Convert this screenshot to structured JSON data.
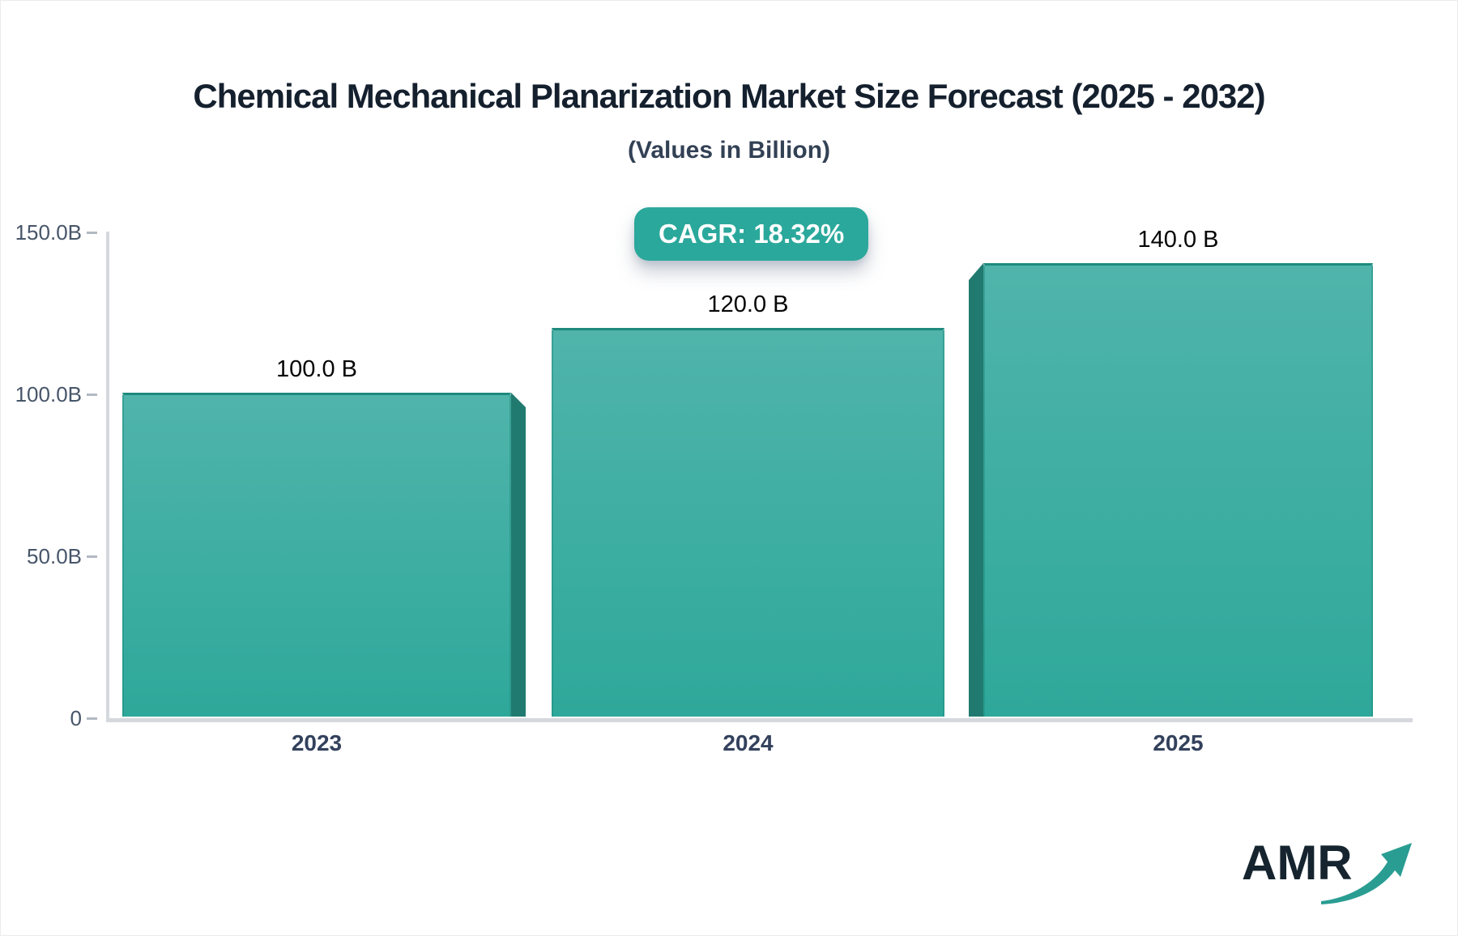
{
  "title": "Chemical Mechanical Planarization Market Size Forecast (2025 - 2032)",
  "subtitle": "(Values in Billion)",
  "badge": {
    "label": "CAGR: 18.32%"
  },
  "watermark": {
    "text": "AMR"
  },
  "colors": {
    "title_text": "#15202e",
    "subtitle_text": "#334155",
    "badge_bg": "#2aa89b",
    "badge_text": "#ffffff",
    "axis_line": "#d5d8dd",
    "tick_dash": "#b3b9c2",
    "y_label_text": "#475569",
    "x_label_text": "#33415c",
    "value_label_text": "#060606",
    "bar_top": "#50b4ab",
    "bar_bottom": "#2ea89a",
    "bar_edge": "#1e8a7e",
    "bar_side": "#217a6f",
    "logo_text": "#15242e",
    "logo_arrow": "#2a9d92"
  },
  "chart_data": {
    "type": "bar",
    "title": "Chemical Mechanical Planarization Market Size Forecast (2025 - 2032)",
    "subtitle": "(Values in Billion)",
    "cagr_percent": 18.32,
    "categories": [
      "2023",
      "2024",
      "2025"
    ],
    "values": [
      100.0,
      120.0,
      140.0
    ],
    "bar_labels": [
      "100.0 B",
      "120.0 B",
      "140.0 B"
    ],
    "unit": "Billion",
    "xlabel": "",
    "ylabel": "",
    "ylim": [
      0,
      150
    ],
    "y_ticks": [
      {
        "label": "150.0B",
        "value": 150
      },
      {
        "label": "100.0B",
        "value": 100
      },
      {
        "label": "50.0B",
        "value": 50
      },
      {
        "label": "0",
        "value": 0
      }
    ],
    "grid": false,
    "legend": null,
    "style": "3d-extruded-teal-bars"
  }
}
